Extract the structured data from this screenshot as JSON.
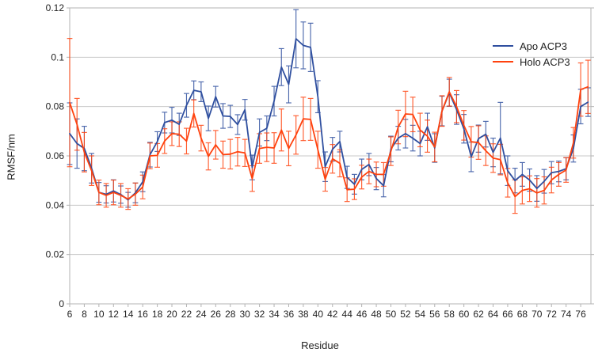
{
  "figure": {
    "background": "#ffffff",
    "frame_color": "#b3b3b3",
    "grid_color": "#c8c8c8",
    "text_color": "#1f1f1f"
  },
  "chart_data": {
    "type": "line",
    "title": "",
    "xlabel": "Residue",
    "ylabel": "RMSF/nm",
    "xlim": [
      6,
      77.4
    ],
    "ylim": [
      0,
      0.12
    ],
    "grid": "horizontal",
    "legend_position": "top-right",
    "yticks": [
      0,
      0.02,
      0.04,
      0.06,
      0.08,
      0.1,
      0.12
    ],
    "ytick_labels": [
      "0",
      "0.02",
      "0.04",
      "0.06",
      "0.08",
      "0.1",
      "0.12"
    ],
    "xticks": [
      6,
      8,
      10,
      12,
      14,
      16,
      18,
      20,
      22,
      24,
      26,
      28,
      30,
      32,
      34,
      36,
      38,
      40,
      42,
      44,
      46,
      48,
      50,
      52,
      54,
      56,
      58,
      60,
      62,
      64,
      66,
      68,
      70,
      72,
      74,
      76
    ],
    "x": [
      6,
      7,
      8,
      9,
      10,
      11,
      12,
      13,
      14,
      15,
      16,
      17,
      18,
      19,
      20,
      21,
      22,
      23,
      24,
      25,
      26,
      27,
      28,
      29,
      30,
      31,
      32,
      33,
      34,
      35,
      36,
      37,
      38,
      39,
      40,
      41,
      42,
      43,
      44,
      45,
      46,
      47,
      48,
      49,
      50,
      51,
      52,
      53,
      54,
      55,
      56,
      57,
      58,
      59,
      60,
      61,
      62,
      63,
      64,
      65,
      66,
      67,
      68,
      69,
      70,
      71,
      72,
      73,
      74,
      75,
      76,
      77
    ],
    "series": [
      {
        "name": "Apo ACP3",
        "color": "#2f4f9f",
        "values": [
          0.069,
          0.065,
          0.063,
          0.055,
          0.0452,
          0.0444,
          0.0458,
          0.0443,
          0.0422,
          0.045,
          0.0495,
          0.0605,
          0.0658,
          0.0735,
          0.0745,
          0.0728,
          0.0805,
          0.0866,
          0.086,
          0.0752,
          0.084,
          0.0762,
          0.076,
          0.0727,
          0.0787,
          0.0553,
          0.0695,
          0.0712,
          0.0822,
          0.096,
          0.089,
          0.1075,
          0.1048,
          0.104,
          0.084,
          0.0556,
          0.0627,
          0.0658,
          0.0513,
          0.0485,
          0.0545,
          0.0565,
          0.0508,
          0.0479,
          0.0628,
          0.0672,
          0.069,
          0.0672,
          0.065,
          0.0718,
          0.0632,
          0.0782,
          0.0856,
          0.0788,
          0.071,
          0.0596,
          0.067,
          0.0688,
          0.0614,
          0.0672,
          0.054,
          0.05,
          0.0525,
          0.0502,
          0.0468,
          0.0497,
          0.0532,
          0.0537,
          0.0548,
          0.063,
          0.08,
          0.0818
        ],
        "errors": [
          0.0125,
          0.01,
          0.009,
          0.006,
          0.004,
          0.0035,
          0.0045,
          0.0035,
          0.003,
          0.004,
          0.004,
          0.005,
          0.004,
          0.0042,
          0.0052,
          0.0045,
          0.0048,
          0.0038,
          0.004,
          0.005,
          0.0042,
          0.005,
          0.0045,
          0.004,
          0.0042,
          0.005,
          0.0055,
          0.005,
          0.006,
          0.0075,
          0.0075,
          0.0118,
          0.0095,
          0.0098,
          0.0065,
          0.006,
          0.0048,
          0.0042,
          0.0045,
          0.004,
          0.0042,
          0.0045,
          0.0045,
          0.0045,
          0.0052,
          0.0048,
          0.0058,
          0.0052,
          0.005,
          0.0055,
          0.0058,
          0.006,
          0.0055,
          0.006,
          0.0058,
          0.006,
          0.0055,
          0.0052,
          0.0058,
          0.0145,
          0.006,
          0.005,
          0.0048,
          0.0045,
          0.0052,
          0.0048,
          0.0045,
          0.0042,
          0.0045,
          0.0055,
          0.007,
          0.0058
        ]
      },
      {
        "name": "Holo ACP3",
        "color": "#ff420e",
        "values": [
          0.0816,
          0.0728,
          0.0615,
          0.054,
          0.0452,
          0.044,
          0.0452,
          0.044,
          0.0425,
          0.0445,
          0.0474,
          0.06,
          0.0602,
          0.066,
          0.069,
          0.0688,
          0.066,
          0.0772,
          0.0672,
          0.0598,
          0.0645,
          0.0605,
          0.0607,
          0.0617,
          0.0612,
          0.0508,
          0.063,
          0.0635,
          0.0632,
          0.0705,
          0.063,
          0.0685,
          0.075,
          0.0748,
          0.0625,
          0.0505,
          0.0588,
          0.057,
          0.0463,
          0.0465,
          0.0514,
          0.0537,
          0.0525,
          0.0525,
          0.0619,
          0.0717,
          0.077,
          0.0768,
          0.0705,
          0.068,
          0.0636,
          0.0782,
          0.086,
          0.08,
          0.0724,
          0.0657,
          0.0654,
          0.0621,
          0.0591,
          0.0585,
          0.0491,
          0.0435,
          0.046,
          0.0467,
          0.045,
          0.046,
          0.0502,
          0.0525,
          0.0543,
          0.0653,
          0.0869,
          0.088
        ],
        "errors": [
          0.026,
          0.0105,
          0.008,
          0.006,
          0.005,
          0.0048,
          0.005,
          0.0048,
          0.0042,
          0.0045,
          0.0048,
          0.0052,
          0.0048,
          0.005,
          0.0048,
          0.005,
          0.0052,
          0.0055,
          0.0052,
          0.0055,
          0.0058,
          0.0055,
          0.006,
          0.0058,
          0.0055,
          0.0052,
          0.006,
          0.0058,
          0.0062,
          0.0085,
          0.007,
          0.0078,
          0.0088,
          0.0085,
          0.0075,
          0.0048,
          0.0058,
          0.0055,
          0.0048,
          0.0042,
          0.0048,
          0.005,
          0.005,
          0.0048,
          0.0058,
          0.0068,
          0.0092,
          0.007,
          0.0068,
          0.0065,
          0.006,
          0.0062,
          0.0058,
          0.0065,
          0.006,
          0.0062,
          0.0068,
          0.006,
          0.0058,
          0.0062,
          0.0058,
          0.0068,
          0.0055,
          0.0052,
          0.0058,
          0.0055,
          0.0052,
          0.0048,
          0.005,
          0.0062,
          0.0108,
          0.0108
        ]
      }
    ]
  }
}
